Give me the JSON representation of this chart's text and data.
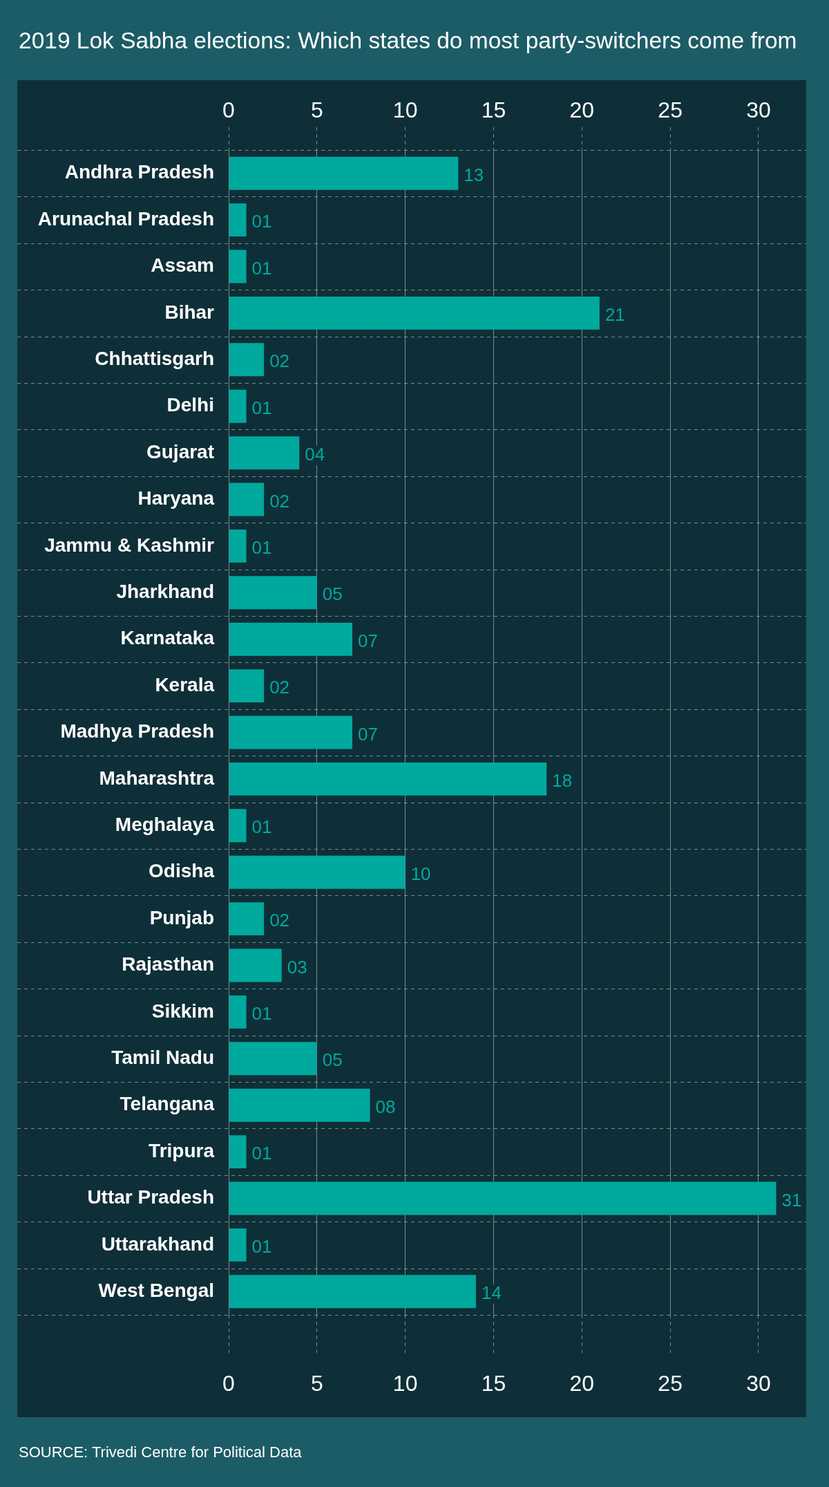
{
  "chart_data": {
    "type": "bar",
    "orientation": "horizontal",
    "title": "2019 Lok Sabha elections: Which states do most party-switchers come from",
    "categories": [
      "Andhra Pradesh",
      "Arunachal Pradesh",
      "Assam",
      "Bihar",
      "Chhattisgarh",
      "Delhi",
      "Gujarat",
      "Haryana",
      "Jammu & Kashmir",
      "Jharkhand",
      "Karnataka",
      "Kerala",
      "Madhya Pradesh",
      "Maharashtra",
      "Meghalaya",
      "Odisha",
      "Punjab",
      "Rajasthan",
      "Sikkim",
      "Tamil Nadu",
      "Telangana",
      "Tripura",
      "Uttar Pradesh",
      "Uttarakhand",
      "West Bengal"
    ],
    "values": [
      13,
      1,
      1,
      21,
      2,
      1,
      4,
      2,
      1,
      5,
      7,
      2,
      7,
      18,
      1,
      10,
      2,
      3,
      1,
      5,
      8,
      1,
      31,
      1,
      14
    ],
    "value_labels": [
      "13",
      "01",
      "01",
      "21",
      "02",
      "01",
      "04",
      "02",
      "01",
      "05",
      "07",
      "02",
      "07",
      "18",
      "01",
      "10",
      "02",
      "03",
      "01",
      "05",
      "08",
      "01",
      "31",
      "01",
      "14"
    ],
    "color": "#00a99d",
    "xlim": [
      0,
      32.7
    ],
    "xticks": [
      0,
      5,
      10,
      15,
      20,
      25,
      30
    ],
    "x2lim": [
      0,
      32.7
    ],
    "x2ticks": [
      0,
      5,
      10,
      15,
      20,
      25,
      30
    ],
    "grid": true,
    "annotations": [
      "SOURCE: Trivedi Centre for Political Data"
    ]
  }
}
